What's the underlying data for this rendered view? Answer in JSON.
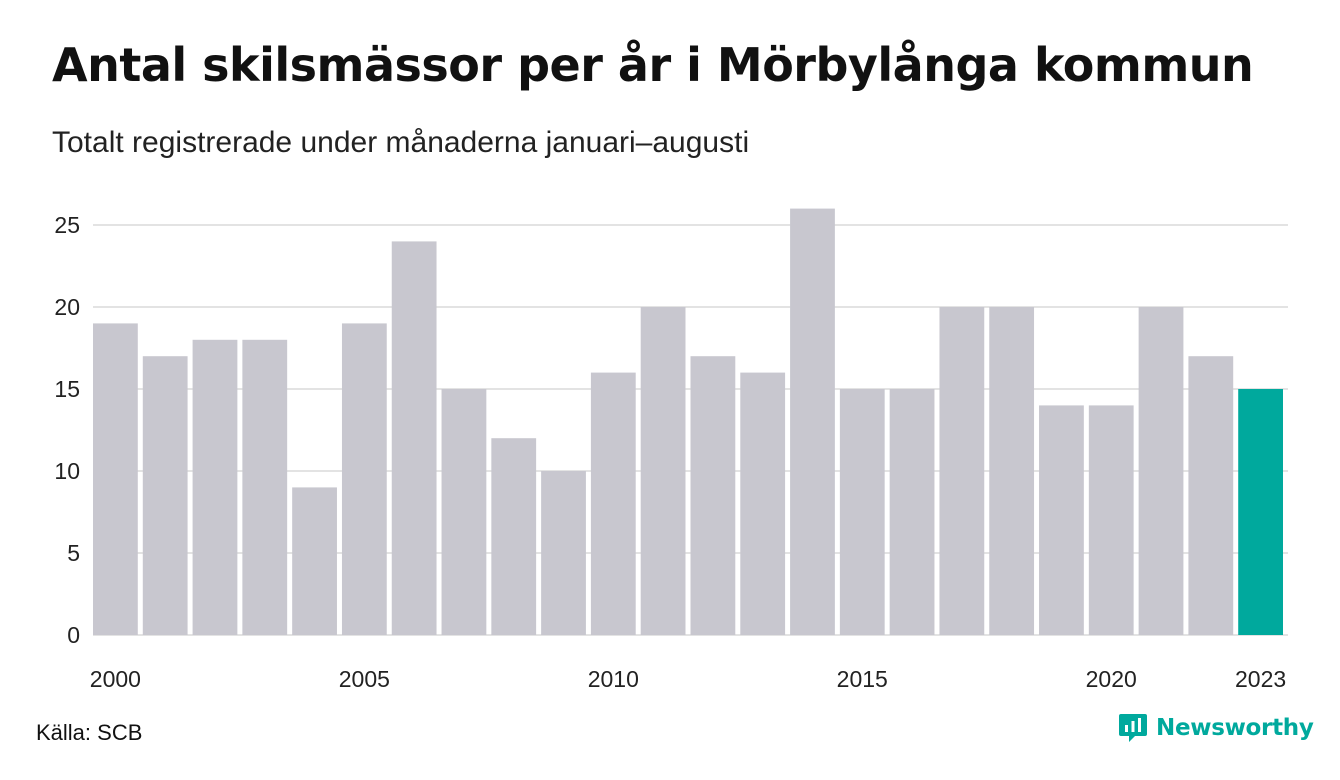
{
  "title": "Antal skilsmässor per år i Mörbylånga kommun",
  "subtitle": "Totalt registrerade under månaderna januari–augusti",
  "source": "Källa: SCB",
  "brand": "Newsworthy",
  "colors": {
    "bar": "#c8c7cf",
    "highlight": "#00a99d",
    "grid": "#e3e3e3",
    "brand": "#00a99d"
  },
  "chart_data": {
    "type": "bar",
    "categories": [
      "2000",
      "2001",
      "2002",
      "2003",
      "2004",
      "2005",
      "2006",
      "2007",
      "2008",
      "2009",
      "2010",
      "2011",
      "2012",
      "2013",
      "2014",
      "2015",
      "2016",
      "2017",
      "2018",
      "2019",
      "2020",
      "2021",
      "2022",
      "2023"
    ],
    "values": [
      19,
      17,
      18,
      18,
      9,
      19,
      24,
      15,
      12,
      10,
      16,
      20,
      17,
      16,
      26,
      15,
      15,
      20,
      20,
      14,
      14,
      20,
      17,
      15
    ],
    "highlight_index": 23,
    "x_tick_labels": [
      "2000",
      "2005",
      "2010",
      "2015",
      "2020",
      "2023"
    ],
    "y_ticks": [
      0,
      5,
      10,
      15,
      20,
      25
    ],
    "ylim": [
      0,
      26
    ],
    "grid": true
  }
}
